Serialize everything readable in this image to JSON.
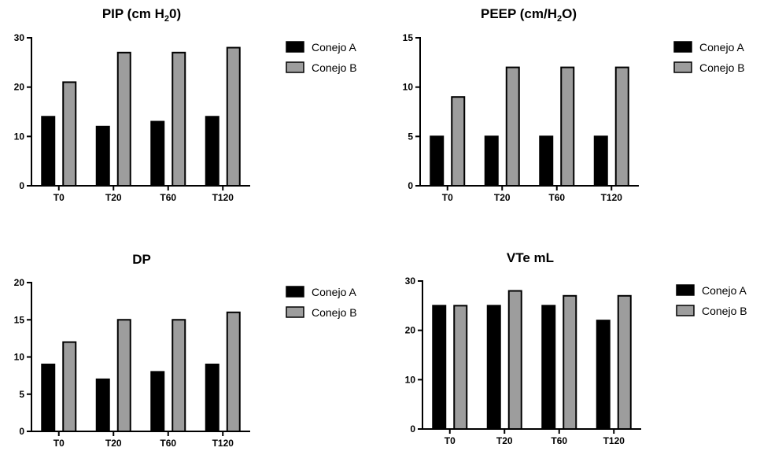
{
  "colors": {
    "series_a": "#000000",
    "series_b": "#9d9d9d"
  },
  "chart_data": [
    {
      "type": "bar",
      "title": "PIP (cm H20)",
      "categories": [
        "T0",
        "T20",
        "T60",
        "T120"
      ],
      "series": [
        {
          "name": "Conejo A",
          "values": [
            14,
            12,
            13,
            14
          ]
        },
        {
          "name": "Conejo B",
          "values": [
            21,
            27,
            27,
            28
          ]
        }
      ],
      "ylim": [
        0,
        30
      ],
      "yticks": [
        0,
        10,
        20,
        30
      ],
      "legend": "right"
    },
    {
      "type": "bar",
      "title": "PEEP (cm/H2O)",
      "categories": [
        "T0",
        "T20",
        "T60",
        "T120"
      ],
      "series": [
        {
          "name": "Conejo A",
          "values": [
            5,
            5,
            5,
            5
          ]
        },
        {
          "name": "Conejo B",
          "values": [
            9,
            12,
            12,
            12
          ]
        }
      ],
      "ylim": [
        0,
        15
      ],
      "yticks": [
        0,
        5,
        10,
        15
      ],
      "legend": "right"
    },
    {
      "type": "bar",
      "title": "DP",
      "categories": [
        "T0",
        "T20",
        "T60",
        "T120"
      ],
      "series": [
        {
          "name": "Conejo A",
          "values": [
            9,
            7,
            8,
            9
          ]
        },
        {
          "name": "Conejo B",
          "values": [
            12,
            15,
            15,
            16
          ]
        }
      ],
      "ylim": [
        0,
        20
      ],
      "yticks": [
        0,
        5,
        10,
        15,
        20
      ],
      "legend": "right"
    },
    {
      "type": "bar",
      "title": "VTe mL",
      "categories": [
        "T0",
        "T20",
        "T60",
        "T120"
      ],
      "series": [
        {
          "name": "Conejo A",
          "values": [
            25,
            25,
            25,
            22
          ]
        },
        {
          "name": "Conejo B",
          "values": [
            25,
            28,
            27,
            27
          ]
        }
      ],
      "ylim": [
        0,
        30
      ],
      "yticks": [
        0,
        10,
        20,
        30
      ],
      "legend": "right"
    }
  ]
}
